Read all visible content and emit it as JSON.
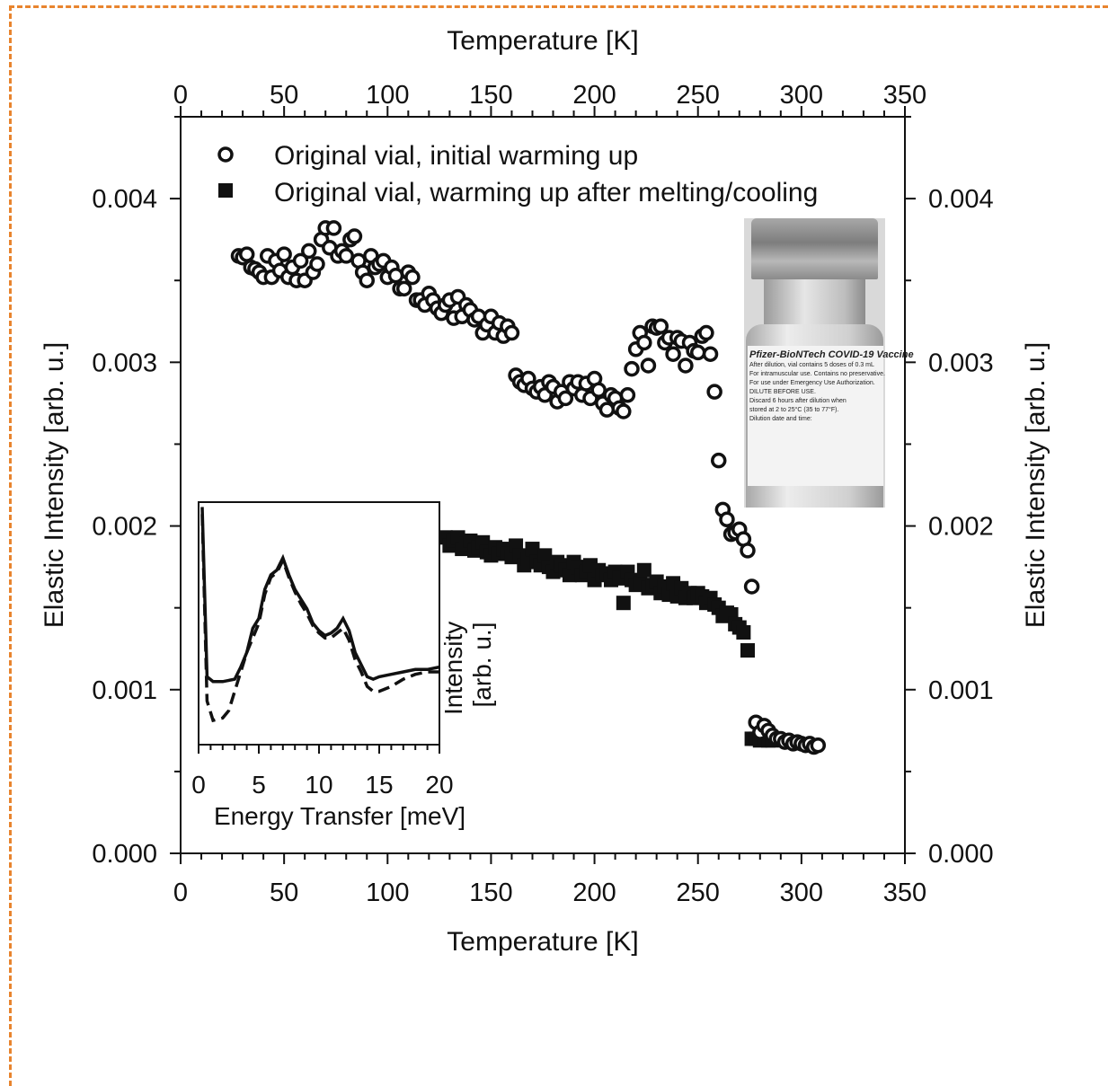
{
  "chart_data": [
    {
      "type": "scatter",
      "title": "",
      "xlabel_bottom": "Temperature [K]",
      "xlabel_top": "Temperature [K]",
      "ylabel_left": "Elastic Intensity [arb. u.]",
      "ylabel_right": "Elastic Intensity [arb. u.]",
      "xlim": [
        0,
        350
      ],
      "ylim": [
        0,
        0.0045
      ],
      "xticks": [
        "0",
        "50",
        "100",
        "150",
        "200",
        "250",
        "300",
        "350"
      ],
      "yticks": [
        "0.000",
        "0.001",
        "0.002",
        "0.003",
        "0.004"
      ],
      "legend_position": "top",
      "series": [
        {
          "name": "Original vial, initial warming up",
          "marker": "open-circle",
          "x": [
            28,
            30,
            32,
            34,
            36,
            38,
            40,
            42,
            44,
            46,
            48,
            50,
            52,
            54,
            56,
            58,
            60,
            62,
            64,
            66,
            68,
            70,
            72,
            74,
            76,
            78,
            80,
            82,
            84,
            86,
            88,
            90,
            92,
            94,
            96,
            98,
            100,
            102,
            104,
            106,
            108,
            110,
            112,
            114,
            116,
            118,
            120,
            122,
            124,
            126,
            128,
            130,
            132,
            134,
            136,
            138,
            140,
            142,
            144,
            146,
            148,
            150,
            152,
            154,
            156,
            158,
            160,
            162,
            164,
            166,
            168,
            170,
            172,
            174,
            176,
            178,
            180,
            182,
            184,
            186,
            188,
            190,
            192,
            194,
            196,
            198,
            200,
            202,
            204,
            206,
            208,
            210,
            212,
            214,
            216,
            218,
            220,
            222,
            224,
            226,
            228,
            230,
            232,
            234,
            236,
            238,
            240,
            242,
            244,
            246,
            248,
            250,
            252,
            254,
            256,
            258,
            260,
            262,
            264,
            266,
            268,
            270,
            272,
            274,
            276,
            278,
            280,
            282,
            284,
            286,
            288,
            290,
            292,
            294,
            296,
            298,
            300,
            302,
            304,
            306,
            308
          ],
          "y": [
            0.00365,
            0.00364,
            0.00366,
            0.00358,
            0.00357,
            0.00355,
            0.00352,
            0.00365,
            0.00352,
            0.00362,
            0.00356,
            0.00366,
            0.00352,
            0.00358,
            0.0035,
            0.00362,
            0.0035,
            0.00368,
            0.00355,
            0.0036,
            0.00375,
            0.00382,
            0.0037,
            0.00382,
            0.00365,
            0.00368,
            0.00365,
            0.00375,
            0.00377,
            0.00362,
            0.00355,
            0.0035,
            0.00365,
            0.00358,
            0.0036,
            0.00362,
            0.00352,
            0.00358,
            0.00353,
            0.00345,
            0.00345,
            0.00355,
            0.00352,
            0.00338,
            0.00338,
            0.00335,
            0.00342,
            0.00338,
            0.00333,
            0.0033,
            0.00335,
            0.00338,
            0.00327,
            0.0034,
            0.00328,
            0.00335,
            0.00332,
            0.00326,
            0.00328,
            0.00318,
            0.00323,
            0.00328,
            0.00318,
            0.00324,
            0.00316,
            0.00322,
            0.00318,
            0.00292,
            0.00288,
            0.00286,
            0.0029,
            0.00284,
            0.00282,
            0.00285,
            0.0028,
            0.00288,
            0.00285,
            0.00276,
            0.00282,
            0.00278,
            0.00288,
            0.00284,
            0.00288,
            0.0028,
            0.00287,
            0.00278,
            0.0029,
            0.00283,
            0.00275,
            0.00271,
            0.0028,
            0.00278,
            0.00272,
            0.0027,
            0.0028,
            0.00296,
            0.00308,
            0.00318,
            0.00312,
            0.00298,
            0.00322,
            0.00321,
            0.00322,
            0.00312,
            0.00315,
            0.00305,
            0.00315,
            0.00313,
            0.00298,
            0.00312,
            0.00307,
            0.00306,
            0.00316,
            0.00318,
            0.00305,
            0.00282,
            0.0024,
            0.0021,
            0.00204,
            0.00195,
            0.00196,
            0.00198,
            0.00192,
            0.00185,
            0.00163,
            0.0008,
            0.00074,
            0.00078,
            0.00075,
            0.00072,
            0.0007,
            0.0007,
            0.00068,
            0.00069,
            0.00067,
            0.00068,
            0.00067,
            0.00066,
            0.00067,
            0.00065,
            0.00066
          ]
        },
        {
          "name": "Original vial, warming up after melting/cooling",
          "marker": "filled-square",
          "x": [
            128,
            130,
            132,
            134,
            136,
            138,
            140,
            142,
            144,
            146,
            148,
            150,
            152,
            154,
            156,
            158,
            160,
            162,
            164,
            166,
            168,
            170,
            172,
            174,
            176,
            178,
            180,
            182,
            184,
            186,
            188,
            190,
            192,
            194,
            196,
            198,
            200,
            202,
            204,
            206,
            208,
            210,
            212,
            214,
            216,
            218,
            220,
            222,
            224,
            226,
            228,
            230,
            232,
            234,
            236,
            238,
            240,
            242,
            244,
            246,
            248,
            250,
            252,
            254,
            256,
            258,
            260,
            262,
            264,
            266,
            268,
            270,
            272,
            274,
            276,
            278,
            280,
            282,
            284,
            286
          ],
          "y": [
            0.00193,
            0.00188,
            0.00191,
            0.00193,
            0.00186,
            0.00189,
            0.00191,
            0.00185,
            0.00187,
            0.0019,
            0.00184,
            0.00182,
            0.00187,
            0.00183,
            0.00186,
            0.00183,
            0.00181,
            0.00188,
            0.00182,
            0.00176,
            0.0018,
            0.00186,
            0.00178,
            0.00176,
            0.00182,
            0.00175,
            0.00172,
            0.00178,
            0.00176,
            0.00173,
            0.0017,
            0.00178,
            0.00175,
            0.0017,
            0.00172,
            0.00176,
            0.00167,
            0.00173,
            0.0017,
            0.00171,
            0.00167,
            0.00172,
            0.00168,
            0.00153,
            0.00172,
            0.00167,
            0.00164,
            0.00165,
            0.00173,
            0.00162,
            0.00164,
            0.00166,
            0.00159,
            0.00163,
            0.00158,
            0.00165,
            0.00157,
            0.00162,
            0.00156,
            0.00159,
            0.00156,
            0.00159,
            0.00157,
            0.00153,
            0.00156,
            0.00152,
            0.0015,
            0.00145,
            0.00147,
            0.00146,
            0.0014,
            0.00138,
            0.00135,
            0.00124,
            0.0007,
            0.0007,
            0.00069,
            0.00071,
            0.00069,
            0.00069
          ]
        }
      ]
    },
    {
      "type": "line",
      "title": "",
      "xlabel": "Energy Transfer [meV]",
      "ylabel": "Intensity [arb. u.]",
      "xlim": [
        0,
        20
      ],
      "xticks": [
        "0",
        "5",
        "10",
        "15",
        "20"
      ],
      "series": [
        {
          "style": "solid",
          "x": [
            0.3,
            0.7,
            1.2,
            2,
            3,
            3.5,
            4,
            4.5,
            5,
            5.5,
            6,
            6.5,
            7,
            7.5,
            8,
            8.5,
            9,
            9.5,
            10,
            10.5,
            11,
            11.5,
            12,
            12.5,
            13,
            13.5,
            14,
            14.5,
            15,
            16,
            17,
            18,
            19,
            20
          ],
          "y": [
            0.98,
            0.28,
            0.26,
            0.26,
            0.27,
            0.32,
            0.38,
            0.48,
            0.52,
            0.64,
            0.7,
            0.72,
            0.77,
            0.7,
            0.64,
            0.6,
            0.56,
            0.5,
            0.47,
            0.45,
            0.46,
            0.48,
            0.52,
            0.47,
            0.38,
            0.33,
            0.28,
            0.27,
            0.28,
            0.29,
            0.3,
            0.31,
            0.31,
            0.32
          ]
        },
        {
          "style": "dashed",
          "x": [
            0.3,
            0.7,
            1.2,
            2,
            2.5,
            3,
            3.5,
            4,
            4.5,
            5,
            5.5,
            6,
            6.5,
            7,
            7.5,
            8,
            8.5,
            9,
            9.5,
            10,
            10.5,
            11,
            11.5,
            12,
            12.5,
            13,
            13.5,
            14,
            14.5,
            15,
            16,
            17,
            18,
            19,
            20
          ],
          "y": [
            0.95,
            0.18,
            0.1,
            0.11,
            0.14,
            0.22,
            0.3,
            0.38,
            0.44,
            0.5,
            0.62,
            0.69,
            0.71,
            0.76,
            0.69,
            0.63,
            0.58,
            0.54,
            0.49,
            0.46,
            0.44,
            0.44,
            0.46,
            0.48,
            0.43,
            0.35,
            0.3,
            0.24,
            0.22,
            0.22,
            0.24,
            0.27,
            0.29,
            0.3,
            0.3
          ]
        }
      ]
    }
  ],
  "vial_label": {
    "title": "Pfizer-BioNTech COVID-19 Vaccine",
    "lines": [
      "After dilution, vial contains 5 doses of 0.3 mL",
      "For intramuscular use. Contains no preservative.",
      "For use under Emergency Use Authorization.",
      "DILUTE BEFORE USE.",
      "Discard 6 hours after dilution when",
      "stored at 2 to 25°C (35 to 77°F).",
      "Dilution date and time:"
    ]
  }
}
